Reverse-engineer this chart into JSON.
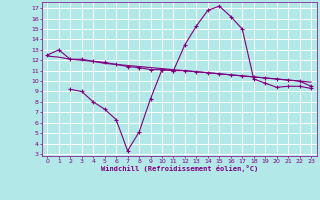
{
  "background_color": "#b2e8e8",
  "grid_color": "#ffffff",
  "line_color": "#800080",
  "xlabel": "Windchill (Refroidissement éolien,°C)",
  "xlim": [
    -0.5,
    23.5
  ],
  "ylim": [
    2.8,
    17.6
  ],
  "yticks": [
    3,
    4,
    5,
    6,
    7,
    8,
    9,
    10,
    11,
    12,
    13,
    14,
    15,
    16,
    17
  ],
  "xticks": [
    0,
    1,
    2,
    3,
    4,
    5,
    6,
    7,
    8,
    9,
    10,
    11,
    12,
    13,
    14,
    15,
    16,
    17,
    18,
    19,
    20,
    21,
    22,
    23
  ],
  "line1_x": [
    0,
    1,
    2,
    3,
    4,
    5,
    6,
    7,
    8,
    9,
    10,
    11,
    12,
    13,
    14,
    15,
    16,
    17,
    18,
    19,
    20,
    21,
    22,
    23
  ],
  "line1_y": [
    12.5,
    13.0,
    12.1,
    12.1,
    11.9,
    11.8,
    11.6,
    11.4,
    11.3,
    11.1,
    11.1,
    11.0,
    13.5,
    15.3,
    16.8,
    17.2,
    16.2,
    15.0,
    10.2,
    9.8,
    9.4,
    9.5,
    9.5,
    9.3
  ],
  "line2_x": [
    0,
    1,
    2,
    3,
    4,
    5,
    6,
    7,
    8,
    9,
    10,
    11,
    12,
    13,
    14,
    15,
    16,
    17,
    18,
    19,
    20,
    21,
    22,
    23
  ],
  "line2_y": [
    12.4,
    12.3,
    12.1,
    12.0,
    11.9,
    11.7,
    11.6,
    11.5,
    11.4,
    11.3,
    11.2,
    11.1,
    11.0,
    10.9,
    10.8,
    10.7,
    10.6,
    10.5,
    10.4,
    10.3,
    10.2,
    10.1,
    10.0,
    9.9
  ],
  "line3_x": [
    2,
    3,
    4,
    5,
    6,
    7,
    8,
    9,
    10,
    11,
    12,
    13,
    14,
    15,
    16,
    17,
    18,
    19,
    20,
    21,
    22,
    23
  ],
  "line3_y": [
    9.2,
    9.0,
    8.0,
    7.3,
    6.3,
    3.3,
    5.1,
    8.3,
    11.1,
    11.0,
    11.0,
    10.9,
    10.8,
    10.7,
    10.6,
    10.5,
    10.4,
    10.3,
    10.2,
    10.1,
    10.0,
    9.5
  ]
}
